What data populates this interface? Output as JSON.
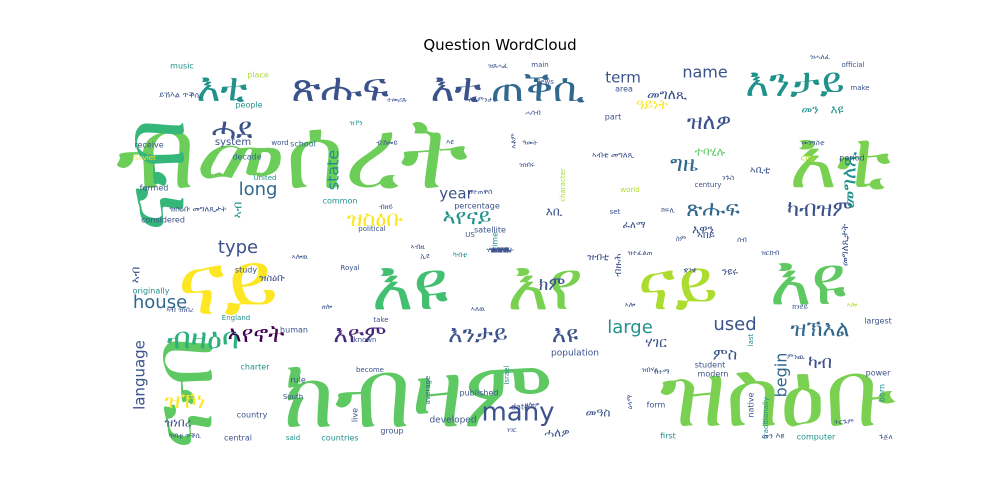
{
  "chart_data": {
    "type": "wordcloud",
    "title": "Question WordCloud",
    "colormap": "viridis",
    "background": "#ffffff",
    "words": [
      {
        "text": "ብመሰረት",
        "weight": 100,
        "color": "#6cce59"
      },
      {
        "text": "እቲ",
        "weight": 78,
        "color": "#7ad151"
      },
      {
        "text": "ናይ",
        "weight": 76,
        "color": "#fde725"
      },
      {
        "text": "እዩ",
        "weight": 70,
        "color": "#43bf71"
      },
      {
        "text": "እየ",
        "weight": 70,
        "color": "#7ad151"
      },
      {
        "text": "ናይ",
        "weight": 68,
        "color": "#addc30"
      },
      {
        "text": "እዩ",
        "weight": 66,
        "color": "#5ec962"
      },
      {
        "text": "ክብዛም",
        "weight": 98,
        "color": "#5ec962"
      },
      {
        "text": "ዝስዕቡ",
        "weight": 96,
        "color": "#7ad151"
      },
      {
        "text": "ናብ",
        "weight": 88,
        "color": "#35b779"
      },
      {
        "text": "ናብ",
        "weight": 82,
        "color": "#5ec962"
      },
      {
        "text": "እቲ",
        "weight": 38,
        "color": "#21918c"
      },
      {
        "text": "ጽሑፍ",
        "weight": 38,
        "color": "#3b528b"
      },
      {
        "text": "እቲ",
        "weight": 36,
        "color": "#3b528b"
      },
      {
        "text": "ጠቕሲ",
        "weight": 36,
        "color": "#31688e"
      },
      {
        "text": "እንታይ",
        "weight": 36,
        "color": "#21918c"
      },
      {
        "text": "ሓደ",
        "weight": 30,
        "color": "#3b528b"
      },
      {
        "text": "ብዛዕባ",
        "weight": 30,
        "color": "#2ab07f"
      },
      {
        "text": "ኣየኖት",
        "weight": 26,
        "color": "#440154"
      },
      {
        "text": "እዮም",
        "weight": 26,
        "color": "#482878"
      },
      {
        "text": "እንታይ",
        "weight": 26,
        "color": "#3b528b"
      },
      {
        "text": "እዩ",
        "weight": 22,
        "color": "#3b528b"
      },
      {
        "text": "many",
        "weight": 26,
        "color": "#3b528b"
      },
      {
        "text": "ዝለዎ",
        "weight": 22,
        "color": "#3b528b"
      },
      {
        "text": "ግዜ",
        "weight": 22,
        "color": "#31688e"
      },
      {
        "text": "ዝስዕቡ",
        "weight": 22,
        "color": "#fde725"
      },
      {
        "text": "ኣየናይ",
        "weight": 22,
        "color": "#21918c"
      },
      {
        "text": "ጽሑፍ",
        "weight": 20,
        "color": "#31688e"
      },
      {
        "text": "ካብዝም",
        "weight": 20,
        "color": "#3b528b"
      },
      {
        "text": "ዝኾነ",
        "weight": 22,
        "color": "#fde725"
      },
      {
        "text": "ዝኽእል",
        "weight": 22,
        "color": "#31688e"
      },
      {
        "text": "መግለጺ",
        "weight": 22,
        "color": "#21918c"
      },
      {
        "text": "house",
        "weight": 18,
        "color": "#31688e"
      },
      {
        "text": "type",
        "weight": 18,
        "color": "#3b528b"
      },
      {
        "text": "long",
        "weight": 18,
        "color": "#31688e"
      },
      {
        "text": "state",
        "weight": 16,
        "color": "#21918c"
      },
      {
        "text": "used",
        "weight": 18,
        "color": "#3b528b"
      },
      {
        "text": "large",
        "weight": 16,
        "color": "#21918c"
      },
      {
        "text": "name",
        "weight": 16,
        "color": "#3b528b"
      },
      {
        "text": "term",
        "weight": 14,
        "color": "#3b528b"
      },
      {
        "text": "year",
        "weight": 14,
        "color": "#3b528b"
      },
      {
        "text": "language",
        "weight": 15,
        "color": "#3b528b"
      },
      {
        "text": "begin",
        "weight": 16,
        "color": "#31688e"
      },
      {
        "text": "ካብ",
        "weight": 18,
        "color": "#3b528b"
      },
      {
        "text": "ክም",
        "weight": 18,
        "color": "#3b528b"
      },
      {
        "text": "ሃገር",
        "weight": 14,
        "color": "#3b528b"
      },
      {
        "text": "ምስ",
        "weight": 16,
        "color": "#3b528b"
      },
      {
        "text": "መን",
        "weight": 12,
        "color": "#21918c"
      },
      {
        "text": "እዩ",
        "weight": 12,
        "color": "#21918c"
      },
      {
        "text": "ዓይነት",
        "weight": 14,
        "color": "#fde725"
      },
      {
        "text": "ተባሂሉ",
        "weight": 12,
        "color": "#5ec962"
      },
      {
        "text": "መግለጺ",
        "weight": 14,
        "color": "#3b528b"
      },
      {
        "text": "እቢ",
        "weight": 12,
        "color": "#3b528b"
      },
      {
        "text": "እዋን",
        "weight": 12,
        "color": "#3b528b"
      },
      {
        "text": "መዓስ",
        "weight": 12,
        "color": "#3b528b"
      },
      {
        "text": "ሓለዎ",
        "weight": 12,
        "color": "#3b528b"
      },
      {
        "text": "ዝነበረ",
        "weight": 12,
        "color": "#3b528b"
      },
      {
        "text": "ኣብ",
        "weight": 12,
        "color": "#3b528b"
      },
      {
        "text": "ኣብ",
        "weight": 12,
        "color": "#21918c"
      },
      {
        "text": "ንዩሩ",
        "weight": 10,
        "color": "#3b528b"
      },
      {
        "text": "ብዙሕ",
        "weight": 10,
        "color": "#3b528b"
      },
      {
        "text": "ፈለማ",
        "weight": 10,
        "color": "#3b528b"
      },
      {
        "text": "መግለጺታት",
        "weight": 10,
        "color": "#3b528b"
      },
      {
        "text": "ዝስዕቡ",
        "weight": 10,
        "color": "#3b528b"
      },
      {
        "text": "ኣበይ",
        "weight": 10,
        "color": "#3b528b"
      },
      {
        "text": "ዝብቲ",
        "weight": 10,
        "color": "#3b528b"
      },
      {
        "text": "ኣቢቲ",
        "weight": 10,
        "color": "#3b528b"
      },
      {
        "text": "system",
        "weight": 10,
        "color": "#3b528b"
      },
      {
        "text": "people",
        "weight": 8,
        "color": "#21918c"
      },
      {
        "text": "music",
        "weight": 8,
        "color": "#21918c"
      },
      {
        "text": "place",
        "weight": 8,
        "color": "#addc30"
      },
      {
        "text": "school",
        "weight": 8,
        "color": "#31688e"
      },
      {
        "text": "receive",
        "weight": 8,
        "color": "#3b528b"
      },
      {
        "text": "Soviet",
        "weight": 7,
        "color": "#fde725"
      },
      {
        "text": "decade",
        "weight": 8,
        "color": "#31688e"
      },
      {
        "text": "formed",
        "weight": 8,
        "color": "#3b528b"
      },
      {
        "text": "considered",
        "weight": 8,
        "color": "#3b528b"
      },
      {
        "text": "originally",
        "weight": 8,
        "color": "#21918c"
      },
      {
        "text": "study",
        "weight": 8,
        "color": "#3b528b"
      },
      {
        "text": "England",
        "weight": 7,
        "color": "#21918c"
      },
      {
        "text": "human",
        "weight": 8,
        "color": "#3b528b"
      },
      {
        "text": "charter",
        "weight": 8,
        "color": "#21918c"
      },
      {
        "text": "rule",
        "weight": 8,
        "color": "#3b528b"
      },
      {
        "text": "country",
        "weight": 8,
        "color": "#3b528b"
      },
      {
        "text": "central",
        "weight": 8,
        "color": "#3b528b"
      },
      {
        "text": "South",
        "weight": 7,
        "color": "#3b528b"
      },
      {
        "text": "said",
        "weight": 7,
        "color": "#21918c"
      },
      {
        "text": "countries",
        "weight": 8,
        "color": "#21918c"
      },
      {
        "text": "group",
        "weight": 8,
        "color": "#3b528b"
      },
      {
        "text": "live",
        "weight": 8,
        "color": "#3b528b"
      },
      {
        "text": "developed",
        "weight": 9,
        "color": "#3b528b"
      },
      {
        "text": "published",
        "weight": 8,
        "color": "#3b528b"
      },
      {
        "text": "average",
        "weight": 7,
        "color": "#31688e"
      },
      {
        "text": "date",
        "weight": 8,
        "color": "#3b528b"
      },
      {
        "text": "Israel",
        "weight": 7,
        "color": "#21918c"
      },
      {
        "text": "population",
        "weight": 9,
        "color": "#3b528b"
      },
      {
        "text": "student",
        "weight": 8,
        "color": "#3b528b"
      },
      {
        "text": "modern",
        "weight": 8,
        "color": "#3b528b"
      },
      {
        "text": "power",
        "weight": 8,
        "color": "#3b528b"
      },
      {
        "text": "born",
        "weight": 8,
        "color": "#21918c"
      },
      {
        "text": "form",
        "weight": 8,
        "color": "#3b528b"
      },
      {
        "text": "first",
        "weight": 8,
        "color": "#21918c"
      },
      {
        "text": "native",
        "weight": 8,
        "color": "#3b528b"
      },
      {
        "text": "computer",
        "weight": 8,
        "color": "#21918c"
      },
      {
        "text": "traditionally",
        "weight": 7,
        "color": "#21918c"
      },
      {
        "text": "largest",
        "weight": 8,
        "color": "#3b528b"
      },
      {
        "text": "last",
        "weight": 7,
        "color": "#21918c"
      },
      {
        "text": "city",
        "weight": 8,
        "color": "#addc30"
      },
      {
        "text": "period",
        "weight": 8,
        "color": "#3b528b"
      },
      {
        "text": "century",
        "weight": 7,
        "color": "#3b528b"
      },
      {
        "text": "world",
        "weight": 7,
        "color": "#addc30"
      },
      {
        "text": "area",
        "weight": 8,
        "color": "#3b528b"
      },
      {
        "text": "part",
        "weight": 8,
        "color": "#3b528b"
      },
      {
        "text": "Jews",
        "weight": 7,
        "color": "#3b528b"
      },
      {
        "text": "main",
        "weight": 7,
        "color": "#3b528b"
      },
      {
        "text": "official",
        "weight": 7,
        "color": "#3b528b"
      },
      {
        "text": "make",
        "weight": 7,
        "color": "#3b528b"
      },
      {
        "text": "satellite",
        "weight": 8,
        "color": "#3b528b"
      },
      {
        "text": "percentage",
        "weight": 8,
        "color": "#3b528b"
      },
      {
        "text": "time",
        "weight": 8,
        "color": "#21918c"
      },
      {
        "text": "US",
        "weight": 7,
        "color": "#3b528b"
      },
      {
        "text": "set",
        "weight": 7,
        "color": "#3b528b"
      },
      {
        "text": "political",
        "weight": 7,
        "color": "#3b528b"
      },
      {
        "text": "Royal",
        "weight": 7,
        "color": "#3b528b"
      },
      {
        "text": "known",
        "weight": 7,
        "color": "#3b528b"
      },
      {
        "text": "become",
        "weight": 7,
        "color": "#3b528b"
      },
      {
        "text": "take",
        "weight": 7,
        "color": "#3b528b"
      },
      {
        "text": "common",
        "weight": 8,
        "color": "#21918c"
      },
      {
        "text": "United",
        "weight": 7,
        "color": "#21918c"
      },
      {
        "text": "character",
        "weight": 7,
        "color": "#addc30"
      },
      {
        "text": "word",
        "weight": 7,
        "color": "#3b528b"
      },
      {
        "text": "ይኸእል ጥቕሲ",
        "weight": 8,
        "color": "#3b528b"
      },
      {
        "text": "ካብቲ ጥቕሲ",
        "weight": 7,
        "color": "#3b528b"
      },
      {
        "text": "ዝስዕቡ መግለጺታት",
        "weight": 8,
        "color": "#3b528b"
      },
      {
        "text": "ኣብቲ መግለጺ",
        "weight": 8,
        "color": "#3b528b"
      },
      {
        "text": "መን እዩ",
        "weight": 8,
        "color": "#3b528b"
      },
      {
        "text": "ኣብ ዝነበረ",
        "weight": 7,
        "color": "#3b528b"
      },
      {
        "text": "ዝጸሓፈ",
        "weight": 7,
        "color": "#3b528b"
      },
      {
        "text": "ዝተጠቐሰ",
        "weight": 7,
        "color": "#3b528b"
      },
      {
        "text": "ነገር",
        "weight": 7,
        "color": "#3b528b"
      },
      {
        "text": "ሓሳብ",
        "weight": 7,
        "color": "#3b528b"
      },
      {
        "text": "ንጉስ",
        "weight": 7,
        "color": "#3b528b"
      },
      {
        "text": "ክፍሊ",
        "weight": 7,
        "color": "#3b528b"
      },
      {
        "text": "ዕላማ",
        "weight": 7,
        "color": "#3b528b"
      },
      {
        "text": "ብዘይ",
        "weight": 7,
        "color": "#3b528b"
      },
      {
        "text": "ኣሎ",
        "weight": 7,
        "color": "#3b528b"
      },
      {
        "text": "ኣሎዉ",
        "weight": 7,
        "color": "#3b528b"
      },
      {
        "text": "ዘሎ",
        "weight": 7,
        "color": "#3b528b"
      },
      {
        "text": "ዝኾነ",
        "weight": 7,
        "color": "#21918c"
      },
      {
        "text": "ዓመት",
        "weight": 7,
        "color": "#3b528b"
      },
      {
        "text": "ዝበሃል",
        "weight": 7,
        "color": "#3b528b"
      },
      {
        "text": "ብኸመይ",
        "weight": 7,
        "color": "#3b528b"
      },
      {
        "text": "ስለምንታይ",
        "weight": 7,
        "color": "#3b528b"
      },
      {
        "text": "ተመሪጹ",
        "weight": 7,
        "color": "#3b528b"
      },
      {
        "text": "ኣብዚ",
        "weight": 7,
        "color": "#3b528b"
      },
      {
        "text": "ኢዩ",
        "weight": 7,
        "color": "#3b528b"
      },
      {
        "text": "ኣለዉ",
        "weight": 7,
        "color": "#3b528b"
      },
      {
        "text": "እዩ",
        "weight": 7,
        "color": "#3b528b"
      },
      {
        "text": "እቶም",
        "weight": 7,
        "color": "#3b528b"
      },
      {
        "text": "ካብቲ",
        "weight": 7,
        "color": "#21918c"
      },
      {
        "text": "ዝነበሩ",
        "weight": 7,
        "color": "#3b528b"
      },
      {
        "text": "ዘሎዎ",
        "weight": 7,
        "color": "#3b528b"
      },
      {
        "text": "ዝተፈልጠ",
        "weight": 7,
        "color": "#3b528b"
      },
      {
        "text": "ዝርከብ",
        "weight": 7,
        "color": "#3b528b"
      },
      {
        "text": "ሰብ",
        "weight": 7,
        "color": "#3b528b"
      },
      {
        "text": "ስም",
        "weight": 7,
        "color": "#3b528b"
      },
      {
        "text": "ቋንቋ",
        "weight": 7,
        "color": "#3b528b"
      },
      {
        "text": "ከተማ",
        "weight": 7,
        "color": "#3b528b"
      },
      {
        "text": "ምንጪ",
        "weight": 7,
        "color": "#3b528b"
      },
      {
        "text": "ክንደይ",
        "weight": 7,
        "color": "#3b528b"
      },
      {
        "text": "ኣሎ",
        "weight": 7,
        "color": "#addc30"
      },
      {
        "text": "ጉጅለ",
        "weight": 7,
        "color": "#3b528b"
      },
      {
        "text": "ትርጉም",
        "weight": 7,
        "color": "#3b528b"
      },
      {
        "text": "መንግስቲ",
        "weight": 7,
        "color": "#3b528b"
      },
      {
        "text": "ዝሓለፈ",
        "weight": 7,
        "color": "#3b528b"
      },
      {
        "text": "ዝመጸ",
        "weight": 7,
        "color": "#3b528b"
      },
      {
        "text": "ፈለማ",
        "weight": 7,
        "color": "#3b528b"
      },
      {
        "text": "ታሪኽ",
        "weight": 7,
        "color": "#3b528b"
      },
      {
        "text": "ሃይማኖት",
        "weight": 7,
        "color": "#3b528b"
      },
      {
        "text": "ዝሰርሕ",
        "weight": 7,
        "color": "#3b528b"
      },
      {
        "text": "ዝበለጸ",
        "weight": 7,
        "color": "#3b528b"
      }
    ]
  }
}
